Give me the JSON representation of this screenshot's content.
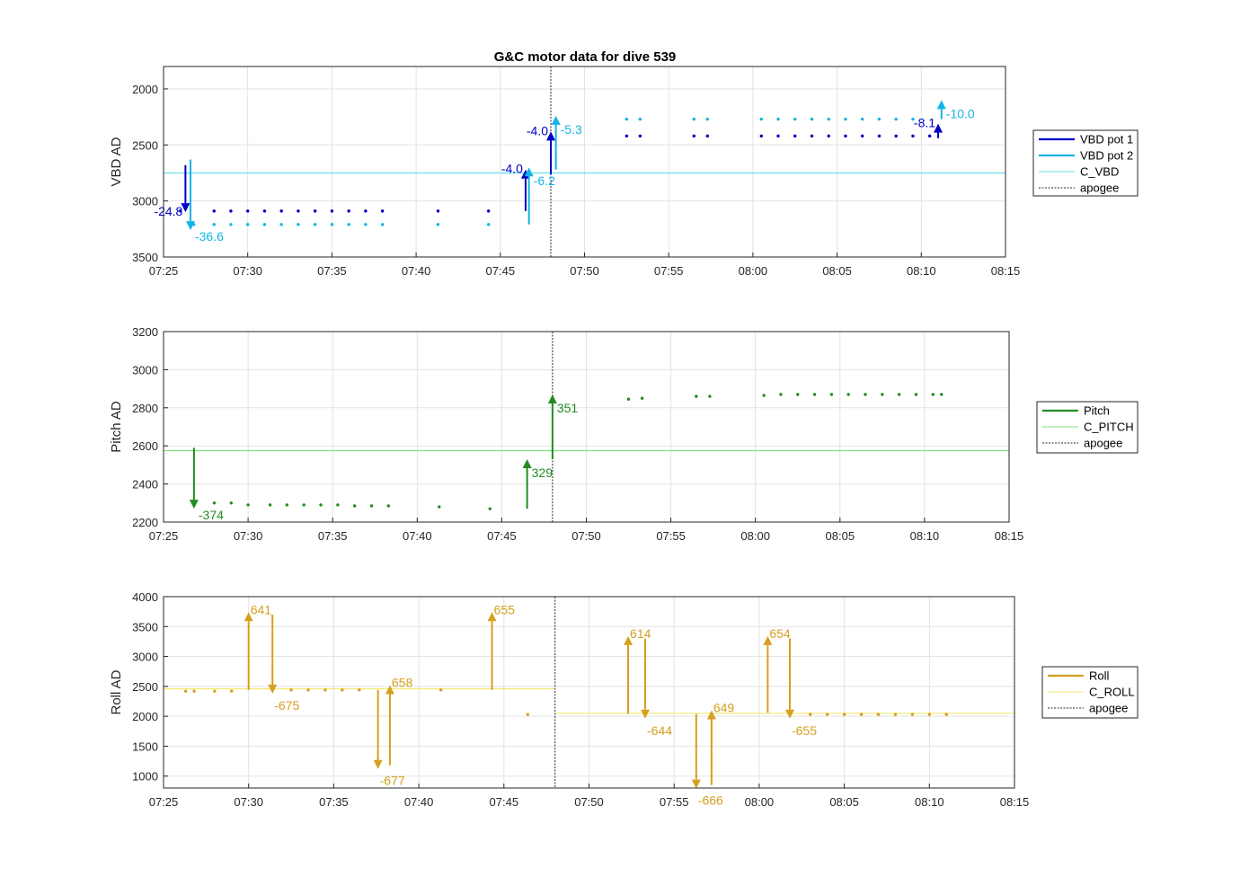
{
  "title": "G&C motor data for dive 539",
  "xticks": [
    "07:25",
    "07:30",
    "07:35",
    "07:40",
    "07:45",
    "07:50",
    "07:55",
    "08:00",
    "08:05",
    "08:10",
    "08:15"
  ],
  "colors": {
    "vbd1": "#0000c8",
    "vbd2": "#12b4e6",
    "c_vbd": "#66e0ec",
    "pitch": "#228b22",
    "c_pitch": "#7ee27e",
    "roll": "#d4a020",
    "c_roll": "#f2ea70",
    "apogee": "#555555",
    "grid": "#e3e3e3"
  },
  "chart_data": [
    {
      "type": "scatter",
      "name": "vbd",
      "ylabel": "VBD AD",
      "xlim": [
        "07:25",
        "08:15"
      ],
      "ylim": [
        3500,
        1800
      ],
      "y_reversed": true,
      "yticks": [
        2000,
        2500,
        3000,
        3500
      ],
      "apogee": "07:48",
      "legend": [
        "VBD pot 1",
        "VBD pot 2",
        "C_VBD",
        "apogee"
      ],
      "legend_position": "outside-right",
      "grid": true,
      "reference_line": {
        "name": "C_VBD",
        "y": 2750
      },
      "series": [
        {
          "name": "VBD pot 1",
          "color_key": "vbd1",
          "x": [
            "07:26",
            "07:28",
            "07:29",
            "07:30",
            "07:31",
            "07:32",
            "07:33",
            "07:34",
            "07:35",
            "07:36",
            "07:37",
            "07:38",
            "07:41.3",
            "07:44.3",
            "07:52.5",
            "07:53.3",
            "07:56.5",
            "07:57.3",
            "08:00.5",
            "08:01.5",
            "08:02.5",
            "08:03.5",
            "08:04.5",
            "08:05.5",
            "08:06.5",
            "08:07.5",
            "08:08.5",
            "08:09.5",
            "08:10.5"
          ],
          "y": [
            3090,
            3090,
            3090,
            3090,
            3090,
            3090,
            3090,
            3090,
            3090,
            3090,
            3090,
            3090,
            3090,
            3090,
            2420,
            2420,
            2420,
            2420,
            2420,
            2420,
            2420,
            2420,
            2420,
            2420,
            2420,
            2420,
            2420,
            2420,
            2420
          ]
        },
        {
          "name": "VBD pot 2",
          "color_key": "vbd2",
          "x": [
            "07:26.8",
            "07:28",
            "07:29",
            "07:30",
            "07:31",
            "07:32",
            "07:33",
            "07:34",
            "07:35",
            "07:36",
            "07:37",
            "07:38",
            "07:41.3",
            "07:44.3",
            "07:52.5",
            "07:53.3",
            "07:56.5",
            "07:57.3",
            "08:00.5",
            "08:01.5",
            "08:02.5",
            "08:03.5",
            "08:04.5",
            "08:05.5",
            "08:06.5",
            "08:07.5",
            "08:08.5",
            "08:09.5"
          ],
          "y": [
            3210,
            3210,
            3210,
            3210,
            3210,
            3210,
            3210,
            3210,
            3210,
            3210,
            3210,
            3210,
            3210,
            3210,
            2270,
            2270,
            2270,
            2270,
            2270,
            2270,
            2270,
            2270,
            2270,
            2270,
            2270,
            2270,
            2270,
            2270
          ]
        }
      ],
      "moves": [
        {
          "series": "VBD pot 1",
          "x": "07:26.3",
          "from": 2680,
          "to": 3100,
          "label": "-24.8",
          "label_side": "left"
        },
        {
          "series": "VBD pot 2",
          "x": "07:26.6",
          "from": 2630,
          "to": 3260,
          "label": "-36.6",
          "label_side": "right"
        },
        {
          "series": "VBD pot 1",
          "x": "07:46.5",
          "from": 3090,
          "to": 2720,
          "label": "-4.0",
          "label_side": "left"
        },
        {
          "series": "VBD pot 2",
          "x": "07:46.7",
          "from": 3210,
          "to": 2700,
          "label": "-6.2",
          "label_side": "right"
        },
        {
          "series": "VBD pot 1",
          "x": "07:48",
          "from": 2760,
          "to": 2380,
          "label": "-4.0",
          "label_side": "left"
        },
        {
          "series": "VBD pot 2",
          "x": "07:48.3",
          "from": 2720,
          "to": 2240,
          "label": "-5.3",
          "label_side": "right"
        },
        {
          "series": "VBD pot 1",
          "x": "08:11",
          "from": 2440,
          "to": 2310,
          "label": "-8.1",
          "label_side": "left"
        },
        {
          "series": "VBD pot 2",
          "x": "08:11.2",
          "from": 2270,
          "to": 2100,
          "label": "-10.0",
          "label_side": "right"
        }
      ]
    },
    {
      "type": "scatter",
      "name": "pitch",
      "ylabel": "Pitch AD",
      "xlim": [
        "07:25",
        "08:15"
      ],
      "ylim": [
        2200,
        3200
      ],
      "y_reversed": false,
      "yticks": [
        2200,
        2400,
        2600,
        2800,
        3000,
        3200
      ],
      "apogee": "07:48",
      "legend": [
        "Pitch",
        "C_PITCH",
        "apogee"
      ],
      "legend_position": "outside-right",
      "grid": true,
      "reference_line": {
        "name": "C_PITCH",
        "y": 2575
      },
      "series": [
        {
          "name": "Pitch",
          "color_key": "pitch",
          "x": [
            "07:28",
            "07:29",
            "07:30",
            "07:31.3",
            "07:32.3",
            "07:33.3",
            "07:34.3",
            "07:35.3",
            "07:36.3",
            "07:37.3",
            "07:38.3",
            "07:41.3",
            "07:44.3",
            "07:52.5",
            "07:53.3",
            "07:56.5",
            "07:57.3",
            "08:00.5",
            "08:01.5",
            "08:02.5",
            "08:03.5",
            "08:04.5",
            "08:05.5",
            "08:06.5",
            "08:07.5",
            "08:08.5",
            "08:09.5",
            "08:10.5",
            "08:11"
          ],
          "y": [
            2300,
            2300,
            2290,
            2290,
            2290,
            2290,
            2290,
            2290,
            2285,
            2285,
            2285,
            2280,
            2270,
            2845,
            2850,
            2860,
            2860,
            2865,
            2870,
            2870,
            2870,
            2870,
            2870,
            2870,
            2870,
            2870,
            2870,
            2870,
            2870
          ]
        }
      ],
      "moves": [
        {
          "series": "Pitch",
          "x": "07:26.8",
          "from": 2590,
          "to": 2270,
          "label": "-374",
          "label_side": "right"
        },
        {
          "series": "Pitch",
          "x": "07:46.5",
          "from": 2270,
          "to": 2530,
          "label": "329",
          "label_side": "right"
        },
        {
          "series": "Pitch",
          "x": "07:48",
          "from": 2530,
          "to": 2870,
          "label": "351",
          "label_side": "right"
        }
      ]
    },
    {
      "type": "scatter",
      "name": "roll",
      "ylabel": "Roll AD",
      "xlim": [
        "07:25",
        "08:15"
      ],
      "ylim": [
        800,
        4000
      ],
      "y_reversed": false,
      "yticks": [
        1000,
        1500,
        2000,
        2500,
        3000,
        3500,
        4000
      ],
      "apogee": "07:48",
      "legend": [
        "Roll",
        "C_ROLL",
        "apogee"
      ],
      "legend_position": "outside-right",
      "grid": true,
      "reference_segments": [
        {
          "name": "C_ROLL",
          "x0": "07:25",
          "x1": "07:48",
          "y": 2460
        },
        {
          "name": "C_ROLL",
          "x0": "07:48",
          "x1": "08:15",
          "y": 2050
        }
      ],
      "series": [
        {
          "name": "Roll",
          "color_key": "roll",
          "x": [
            "07:26.3",
            "07:26.8",
            "07:28",
            "07:29",
            "07:32.5",
            "07:33.5",
            "07:34.5",
            "07:35.5",
            "07:36.5",
            "07:41.3",
            "07:46.4",
            "08:03",
            "08:04",
            "08:05",
            "08:06",
            "08:07",
            "08:08",
            "08:09",
            "08:10",
            "08:11"
          ],
          "y": [
            2420,
            2420,
            2420,
            2420,
            2440,
            2440,
            2440,
            2440,
            2440,
            2440,
            2030,
            2030,
            2030,
            2030,
            2030,
            2030,
            2030,
            2030,
            2030,
            2030
          ]
        }
      ],
      "moves": [
        {
          "x": "07:30",
          "from": 2440,
          "to": 3740,
          "label": "641",
          "label_side": "right-top"
        },
        {
          "x": "07:31.4",
          "from": 3700,
          "to": 2380,
          "label": "-675",
          "label_side": "right-bottom"
        },
        {
          "x": "07:37.6",
          "from": 2440,
          "to": 1120,
          "label": "-677",
          "label_side": "right-bottom"
        },
        {
          "x": "07:38.3",
          "from": 1180,
          "to": 2520,
          "label": "658",
          "label_side": "right-top"
        },
        {
          "x": "07:44.3",
          "from": 2440,
          "to": 3740,
          "label": "655",
          "label_side": "right-top"
        },
        {
          "x": "07:52.3",
          "from": 2040,
          "to": 3340,
          "label": "614",
          "label_side": "right-top"
        },
        {
          "x": "07:53.3",
          "from": 3300,
          "to": 1960,
          "label": "-644",
          "label_side": "right-bottom"
        },
        {
          "x": "07:56.3",
          "from": 2040,
          "to": 790,
          "label": "-666",
          "label_side": "right-bottom"
        },
        {
          "x": "07:57.2",
          "from": 850,
          "to": 2100,
          "label": "649",
          "label_side": "right-top"
        },
        {
          "x": "08:00.5",
          "from": 2060,
          "to": 3340,
          "label": "654",
          "label_side": "right-top"
        },
        {
          "x": "08:01.8",
          "from": 3300,
          "to": 1960,
          "label": "-655",
          "label_side": "right-bottom"
        }
      ]
    }
  ]
}
